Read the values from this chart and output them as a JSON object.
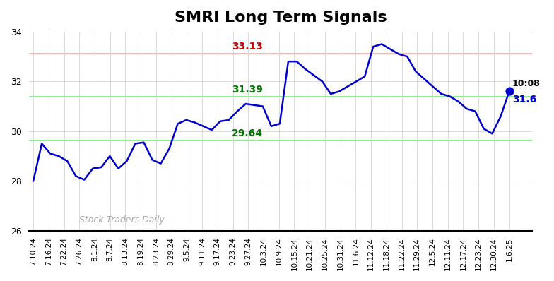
{
  "title": "SMRI Long Term Signals",
  "title_fontsize": 16,
  "title_fontweight": "bold",
  "ylim": [
    26,
    34
  ],
  "yticks": [
    26,
    28,
    30,
    32,
    34
  ],
  "hline_red": 33.13,
  "hline_green_upper": 31.39,
  "hline_green_lower": 29.64,
  "hline_red_color": "#ffb3b3",
  "hline_red_linewidth": 1.5,
  "hline_green_color": "#90ee90",
  "hline_green_linewidth": 1.5,
  "label_red_value": "33.13",
  "label_red_color": "#cc0000",
  "label_green_upper_value": "31.39",
  "label_green_lower_value": "29.64",
  "label_green_color": "#007700",
  "watermark_text": "Stock Traders Daily",
  "watermark_color": "#aaaaaa",
  "last_value": 31.6,
  "last_time": "10:08",
  "line_color": "#0000cc",
  "line_width": 1.8,
  "dot_color": "#0000cc",
  "dot_size": 60,
  "background_color": "#ffffff",
  "grid_color": "#cccccc",
  "xtick_labels": [
    "7.10.24",
    "7.16.24",
    "7.22.24",
    "7.26.24",
    "8.1.24",
    "8.7.24",
    "8.13.24",
    "8.19.24",
    "8.23.24",
    "8.29.24",
    "9.5.24",
    "9.11.24",
    "9.17.24",
    "9.23.24",
    "9.27.24",
    "10.3.24",
    "10.9.24",
    "10.15.24",
    "10.21.24",
    "10.25.24",
    "10.31.24",
    "11.6.24",
    "11.12.24",
    "11.18.24",
    "11.22.24",
    "11.29.24",
    "12.5.24",
    "12.11.24",
    "12.17.24",
    "12.23.24",
    "12.30.24",
    "1.6.25"
  ],
  "y_values": [
    28.0,
    29.5,
    29.1,
    29.0,
    28.8,
    28.2,
    28.05,
    28.5,
    28.55,
    29.0,
    28.5,
    28.8,
    29.5,
    29.55,
    28.85,
    28.7,
    29.3,
    30.3,
    30.45,
    30.35,
    30.2,
    30.05,
    30.4,
    30.45,
    30.8,
    31.1,
    31.05,
    31.0,
    30.2,
    30.3,
    32.8,
    32.8,
    32.5,
    32.25,
    32.0,
    31.5,
    31.6,
    31.8,
    32.0,
    32.2,
    33.4,
    33.5,
    33.3,
    33.1,
    33.0,
    32.4,
    32.1,
    31.8,
    31.5,
    31.4,
    31.2,
    30.9,
    30.8,
    30.1,
    29.9,
    30.6,
    31.6
  ]
}
